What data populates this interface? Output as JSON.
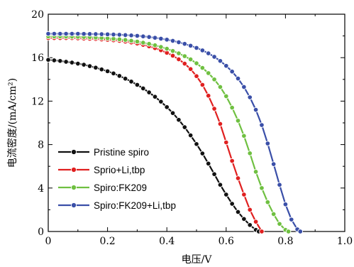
{
  "chart_data": {
    "type": "line",
    "title": "",
    "xlabel": "电压/V",
    "ylabel": "电流密度/(mA/cm²)",
    "xlim": [
      0,
      1.0
    ],
    "ylim": [
      0,
      20
    ],
    "xticks": [
      "0",
      "0.2",
      "0.4",
      "0.6",
      "0.8",
      "1.0"
    ],
    "yticks": [
      "0",
      "4",
      "8",
      "12",
      "16",
      "20"
    ],
    "grid": false,
    "legend_position": "bottom-left",
    "series": [
      {
        "name": "Pristine spiro",
        "color": "#111111",
        "x": [
          0.0,
          0.02,
          0.04,
          0.06,
          0.08,
          0.1,
          0.12,
          0.14,
          0.16,
          0.18,
          0.2,
          0.22,
          0.24,
          0.26,
          0.28,
          0.3,
          0.32,
          0.34,
          0.36,
          0.38,
          0.4,
          0.42,
          0.44,
          0.46,
          0.48,
          0.5,
          0.52,
          0.54,
          0.56,
          0.58,
          0.6,
          0.62,
          0.64,
          0.66,
          0.68,
          0.7,
          0.71
        ],
        "y": [
          15.8,
          15.75,
          15.7,
          15.62,
          15.55,
          15.45,
          15.35,
          15.22,
          15.08,
          14.92,
          14.75,
          14.55,
          14.32,
          14.07,
          13.8,
          13.5,
          13.17,
          12.8,
          12.4,
          11.95,
          11.45,
          10.9,
          10.28,
          9.6,
          8.85,
          8.05,
          7.18,
          6.25,
          5.28,
          4.3,
          3.4,
          2.55,
          1.8,
          1.15,
          0.6,
          0.15,
          0.0
        ]
      },
      {
        "name": "Sprio+Li,tbp",
        "color": "#e02020",
        "x": [
          0.0,
          0.02,
          0.04,
          0.06,
          0.08,
          0.1,
          0.12,
          0.14,
          0.16,
          0.18,
          0.2,
          0.22,
          0.24,
          0.26,
          0.28,
          0.3,
          0.32,
          0.34,
          0.36,
          0.38,
          0.4,
          0.42,
          0.44,
          0.46,
          0.48,
          0.5,
          0.52,
          0.54,
          0.56,
          0.58,
          0.6,
          0.62,
          0.64,
          0.66,
          0.68,
          0.7,
          0.72
        ],
        "y": [
          17.8,
          17.8,
          17.8,
          17.8,
          17.8,
          17.78,
          17.76,
          17.74,
          17.72,
          17.68,
          17.64,
          17.6,
          17.55,
          17.48,
          17.4,
          17.3,
          17.18,
          17.04,
          16.88,
          16.68,
          16.45,
          16.18,
          15.85,
          15.45,
          14.95,
          14.3,
          13.5,
          12.5,
          11.3,
          9.9,
          8.2,
          6.5,
          4.9,
          3.4,
          2.0,
          0.9,
          0.0
        ]
      },
      {
        "name": "Spiro:FK209",
        "color": "#6fc041",
        "x": [
          0.0,
          0.02,
          0.04,
          0.06,
          0.08,
          0.1,
          0.12,
          0.14,
          0.16,
          0.18,
          0.2,
          0.22,
          0.24,
          0.26,
          0.28,
          0.3,
          0.32,
          0.34,
          0.36,
          0.38,
          0.4,
          0.42,
          0.44,
          0.46,
          0.48,
          0.5,
          0.52,
          0.54,
          0.56,
          0.58,
          0.6,
          0.62,
          0.64,
          0.66,
          0.68,
          0.7,
          0.72,
          0.74,
          0.76,
          0.78,
          0.8,
          0.81
        ],
        "y": [
          17.95,
          17.95,
          17.95,
          17.94,
          17.93,
          17.92,
          17.9,
          17.88,
          17.85,
          17.82,
          17.78,
          17.74,
          17.69,
          17.63,
          17.56,
          17.48,
          17.38,
          17.27,
          17.14,
          16.99,
          16.82,
          16.62,
          16.4,
          16.14,
          15.84,
          15.48,
          15.06,
          14.58,
          14.0,
          13.3,
          12.45,
          11.4,
          10.2,
          8.8,
          7.2,
          5.5,
          4.0,
          2.7,
          1.6,
          0.7,
          0.15,
          0.0
        ]
      },
      {
        "name": "Spiro:FK209+Li,tbp",
        "color": "#3a4fa8",
        "x": [
          0.0,
          0.02,
          0.04,
          0.06,
          0.08,
          0.1,
          0.12,
          0.14,
          0.16,
          0.18,
          0.2,
          0.22,
          0.24,
          0.26,
          0.28,
          0.3,
          0.32,
          0.34,
          0.36,
          0.38,
          0.4,
          0.42,
          0.44,
          0.46,
          0.48,
          0.5,
          0.52,
          0.54,
          0.56,
          0.58,
          0.6,
          0.62,
          0.64,
          0.66,
          0.68,
          0.7,
          0.72,
          0.74,
          0.76,
          0.78,
          0.8,
          0.82,
          0.84,
          0.85
        ],
        "y": [
          18.2,
          18.2,
          18.2,
          18.2,
          18.2,
          18.2,
          18.19,
          18.18,
          18.17,
          18.16,
          18.15,
          18.13,
          18.11,
          18.08,
          18.05,
          18.01,
          17.96,
          17.9,
          17.83,
          17.75,
          17.66,
          17.55,
          17.42,
          17.27,
          17.1,
          16.9,
          16.67,
          16.4,
          16.08,
          15.7,
          15.25,
          14.72,
          14.08,
          13.3,
          12.35,
          11.2,
          9.8,
          8.1,
          6.2,
          4.3,
          2.5,
          1.1,
          0.2,
          0.0
        ]
      }
    ]
  }
}
